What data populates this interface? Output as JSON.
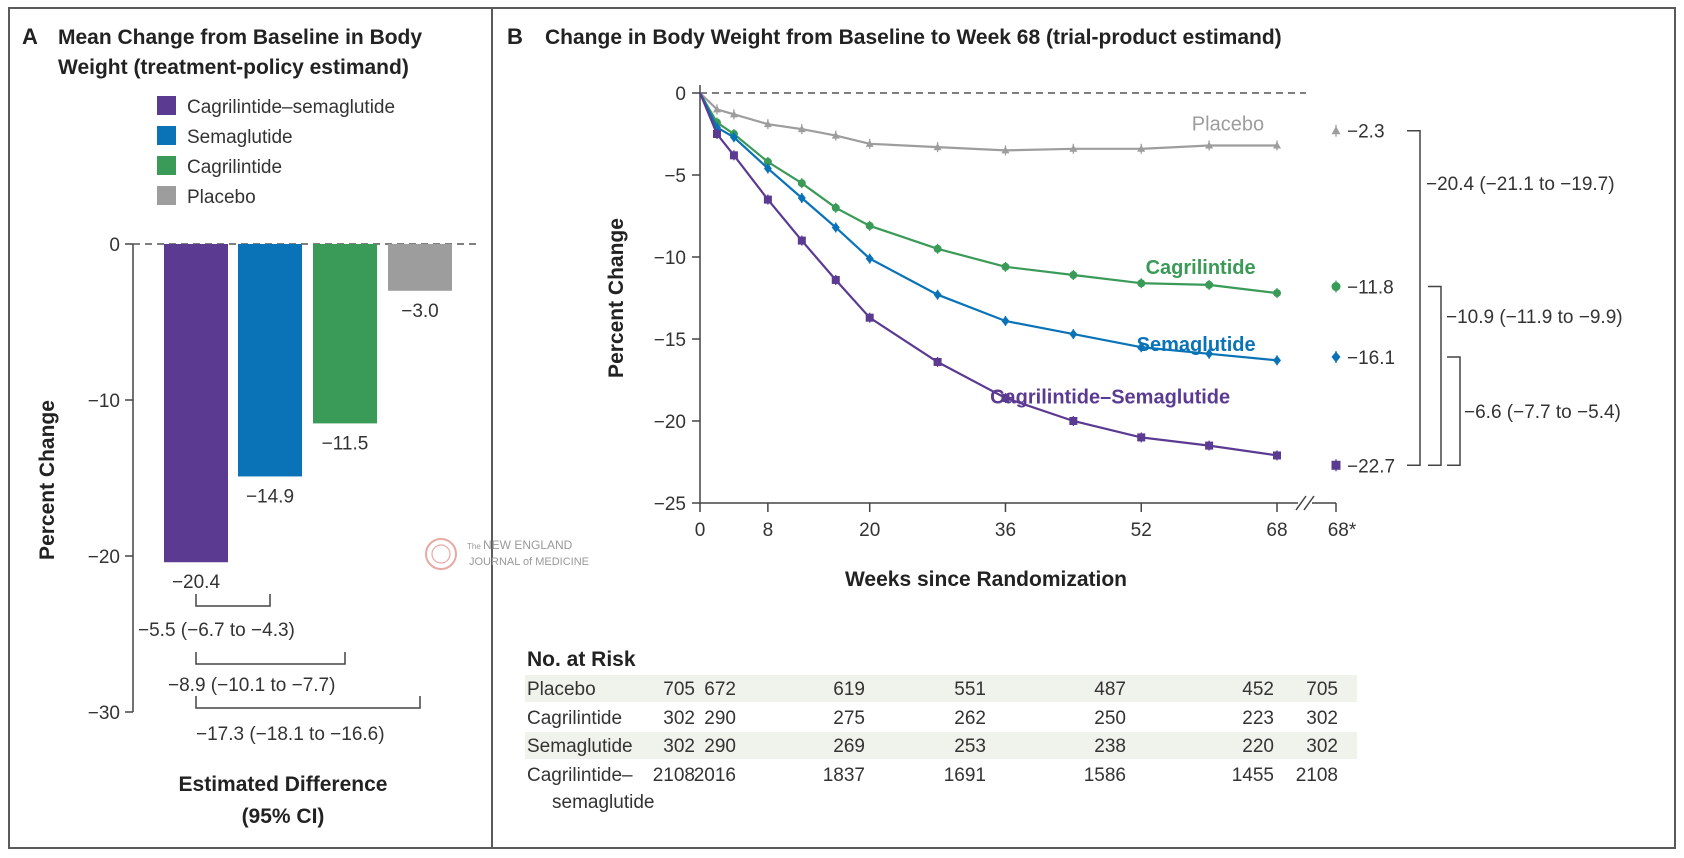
{
  "chart_data": [
    {
      "type": "bar",
      "panel_letter": "A",
      "title": "Mean Change from Baseline in Body Weight (treatment-policy estimand)",
      "title_lines": [
        "Mean Change from Baseline in Body",
        "Weight (treatment-policy estimand)"
      ],
      "ylabel": "Percent Change",
      "ylim": [
        -30,
        0
      ],
      "yticks": [
        0,
        -10,
        -20,
        -30
      ],
      "ytick_labels": [
        "0",
        "−10",
        "−20",
        "−30"
      ],
      "legend_position": "top",
      "series": [
        {
          "name": "Cagrilintide–semaglutide",
          "value": -20.4,
          "label": "−20.4",
          "color": "#5b3a92"
        },
        {
          "name": "Semaglutide",
          "value": -14.9,
          "label": "−14.9",
          "color": "#0a73b8"
        },
        {
          "name": "Cagrilintide",
          "value": -11.5,
          "label": "−11.5",
          "color": "#3a9a57"
        },
        {
          "name": "Placebo",
          "value": -3.0,
          "label": "−3.0",
          "color": "#9d9d9d"
        }
      ],
      "comparisons": [
        {
          "between": [
            0,
            1
          ],
          "label": "−5.5 (−6.7 to −4.3)"
        },
        {
          "between": [
            0,
            2
          ],
          "label": "−8.9 (−10.1 to −7.7)"
        },
        {
          "between": [
            0,
            3
          ],
          "label": "−17.3 (−18.1 to −16.6)"
        }
      ],
      "footer_lines": [
        "Estimated Difference",
        "(95% CI)"
      ]
    },
    {
      "type": "line",
      "panel_letter": "B",
      "title": "Change in Body Weight from Baseline to Week 68 (trial-product estimand)",
      "xlabel": "Weeks since Randomization",
      "ylabel": "Percent Change",
      "xlim": [
        0,
        68
      ],
      "ylim": [
        -25,
        0
      ],
      "xticks": [
        0,
        8,
        20,
        36,
        52,
        68
      ],
      "xtick_labels": [
        "0",
        "8",
        "20",
        "36",
        "52",
        "68"
      ],
      "extra_xtick_label": "68*",
      "yticks": [
        0,
        -5,
        -10,
        -15,
        -20,
        -25
      ],
      "ytick_labels": [
        "0",
        "−5",
        "−10",
        "−15",
        "−20",
        "−25"
      ],
      "series": [
        {
          "name": "Placebo",
          "color": "#9d9d9d",
          "marker": "triangle",
          "x": [
            0,
            2,
            4,
            8,
            12,
            16,
            20,
            28,
            36,
            44,
            52,
            60,
            68
          ],
          "y": [
            0,
            -1.0,
            -1.3,
            -1.9,
            -2.2,
            -2.6,
            -3.1,
            -3.3,
            -3.5,
            -3.4,
            -3.4,
            -3.2,
            -3.2
          ],
          "endpoint_value": -2.3,
          "endpoint_label": "−2.3",
          "label_at": {
            "x": 62,
            "y": -1.85
          }
        },
        {
          "name": "Cagrilintide",
          "color": "#3a9a57",
          "marker": "circle",
          "x": [
            0,
            2,
            4,
            8,
            12,
            16,
            20,
            28,
            36,
            44,
            52,
            60,
            68
          ],
          "y": [
            0,
            -1.8,
            -2.5,
            -4.2,
            -5.5,
            -7.0,
            -8.1,
            -9.5,
            -10.6,
            -11.1,
            -11.6,
            -11.7,
            -12.2
          ],
          "endpoint_value": -11.8,
          "endpoint_label": "−11.8",
          "label_at": {
            "x": 61,
            "y": -10.6
          }
        },
        {
          "name": "Semaglutide",
          "color": "#0a73b8",
          "marker": "diamond",
          "x": [
            0,
            2,
            4,
            8,
            12,
            16,
            20,
            28,
            36,
            44,
            52,
            60,
            68
          ],
          "y": [
            0,
            -2.1,
            -2.7,
            -4.6,
            -6.4,
            -8.2,
            -10.1,
            -12.3,
            -13.9,
            -14.7,
            -15.5,
            -15.9,
            -16.3
          ],
          "endpoint_value": -16.1,
          "endpoint_label": "−16.1",
          "label_at": {
            "x": 61,
            "y": -15.3
          }
        },
        {
          "name": "Cagrilintide–Semaglutide",
          "color": "#5b3a92",
          "marker": "square",
          "x": [
            0,
            2,
            4,
            8,
            12,
            16,
            20,
            28,
            36,
            44,
            52,
            60,
            68
          ],
          "y": [
            0,
            -2.5,
            -3.8,
            -6.5,
            -9.0,
            -11.4,
            -13.7,
            -16.4,
            -18.6,
            -20.0,
            -21.0,
            -21.5,
            -22.1
          ],
          "endpoint_value": -22.7,
          "endpoint_label": "−22.7",
          "label_at": {
            "x": 58,
            "y": -18.5
          }
        }
      ],
      "comparisons": [
        {
          "between": [
            "Placebo",
            "Cagrilintide–Semaglutide"
          ],
          "label": "−20.4 (−21.1 to −19.7)"
        },
        {
          "between": [
            "Cagrilintide",
            "Cagrilintide–Semaglutide"
          ],
          "label": "−10.9 (−11.9 to −9.9)"
        },
        {
          "between": [
            "Semaglutide",
            "Cagrilintide–Semaglutide"
          ],
          "label": "−6.6 (−7.7 to −5.4)"
        }
      ],
      "risk_table": {
        "title": "No. at Risk",
        "rows": [
          {
            "name_lines": [
              "Placebo"
            ],
            "values": [
              "705",
              "672",
              "619",
              "551",
              "487",
              "452",
              "705"
            ]
          },
          {
            "name_lines": [
              "Cagrilintide"
            ],
            "values": [
              "302",
              "290",
              "275",
              "262",
              "250",
              "223",
              "302"
            ]
          },
          {
            "name_lines": [
              "Semaglutide"
            ],
            "values": [
              "302",
              "290",
              "269",
              "253",
              "238",
              "220",
              "302"
            ]
          },
          {
            "name_lines": [
              "Cagrilintide–",
              "semaglutide"
            ],
            "values": [
              "2108",
              "2016",
              "1837",
              "1691",
              "1586",
              "1455",
              "2108"
            ]
          }
        ]
      }
    }
  ],
  "watermark": {
    "line1_small": "The",
    "line1": "NEW ENGLAND",
    "line2": "JOURNAL of MEDICINE"
  }
}
